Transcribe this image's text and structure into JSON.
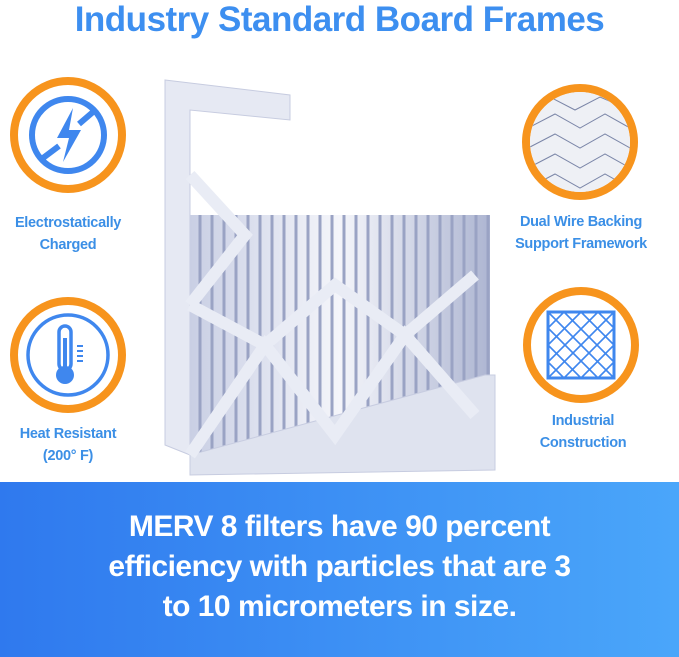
{
  "title": "Industry Standard Board Frames",
  "features": [
    {
      "label_line1": "Electrostatically",
      "label_line2": "Charged",
      "icon": "lightning-bolt-crossed-icon"
    },
    {
      "label_line1": "Heat Resistant",
      "label_line2": "(200° F)",
      "icon": "thermometer-icon"
    },
    {
      "label_line1": "Dual Wire Backing",
      "label_line2": "Support Framework",
      "icon": "wire-mesh-photo-icon"
    },
    {
      "label_line1": "Industrial",
      "label_line2": "Construction",
      "icon": "grid-frame-icon"
    }
  ],
  "banner": {
    "line1": "MERV 8 filters have 90 percent",
    "line2": "efficiency with particles that are 3",
    "line3": "to 10 micrometers in size."
  },
  "colors": {
    "title": "#3d8ff0",
    "badge_ring": "#f7941d",
    "icon_blue": "#3f87ee",
    "banner_start": "#2f79ee",
    "banner_end": "#4aa6fa"
  }
}
